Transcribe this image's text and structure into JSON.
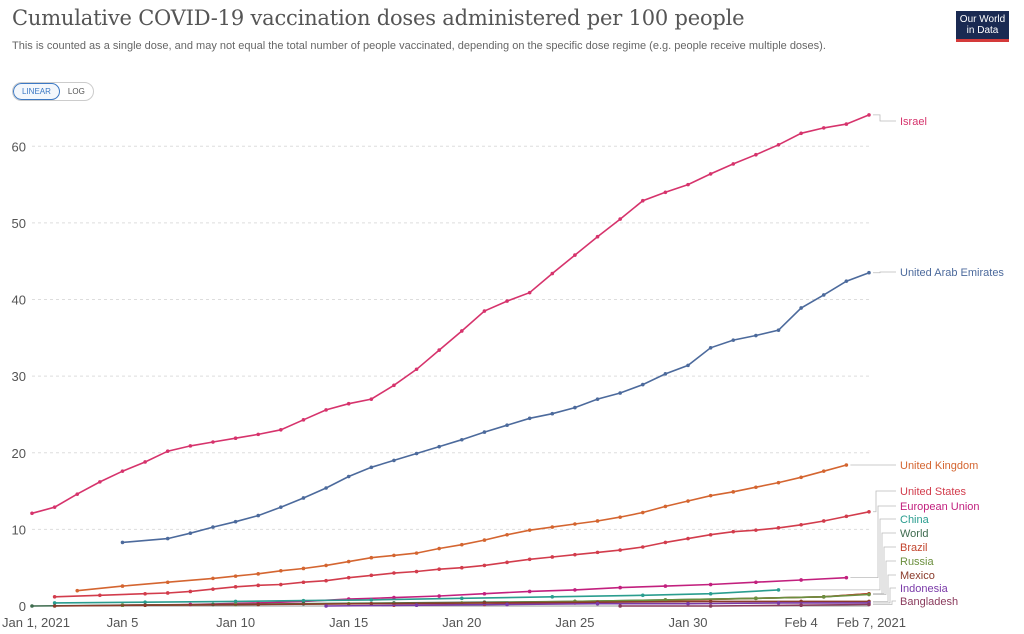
{
  "header": {
    "title": "Cumulative COVID-19 vaccination doses administered per 100 people",
    "subtitle": "This is counted as a single dose, and may not equal the total number of people vaccinated, depending on the specific dose regime (e.g. people receive multiple doses).",
    "logo_line1": "Our World",
    "logo_line2": "in Data",
    "logo_color": "#1a2a52",
    "logo_accent": "#d43a3a"
  },
  "controls": {
    "linear_label": "LINEAR",
    "log_label": "LOG",
    "active": "LINEAR"
  },
  "chart_data": {
    "type": "line",
    "title": "Cumulative COVID-19 vaccination doses administered per 100 people",
    "xlabel": "",
    "ylabel": "",
    "x_range": [
      0,
      37
    ],
    "xlim_dates": [
      "2021-01-01",
      "2021-02-07"
    ],
    "ylim": [
      0,
      65
    ],
    "yticks": [
      0,
      10,
      20,
      30,
      40,
      50,
      60
    ],
    "xticks": [
      {
        "day": 0,
        "label": "Jan 1, 2021"
      },
      {
        "day": 4,
        "label": "Jan 5"
      },
      {
        "day": 9,
        "label": "Jan 10"
      },
      {
        "day": 14,
        "label": "Jan 15"
      },
      {
        "day": 19,
        "label": "Jan 20"
      },
      {
        "day": 24,
        "label": "Jan 25"
      },
      {
        "day": 29,
        "label": "Jan 30"
      },
      {
        "day": 34,
        "label": "Feb 4"
      },
      {
        "day": 37,
        "label": "Feb 7, 2021"
      }
    ],
    "grid": "horizontal-dashed",
    "legend": "right (line-end labels)",
    "series": [
      {
        "name": "Israel",
        "color": "#d6336c",
        "points": [
          [
            0,
            12.1
          ],
          [
            1,
            12.9
          ],
          [
            2,
            14.6
          ],
          [
            3,
            16.2
          ],
          [
            4,
            17.6
          ],
          [
            5,
            18.8
          ],
          [
            6,
            20.2
          ],
          [
            7,
            20.9
          ],
          [
            8,
            21.4
          ],
          [
            9,
            21.9
          ],
          [
            10,
            22.4
          ],
          [
            11,
            23.0
          ],
          [
            12,
            24.3
          ],
          [
            13,
            25.6
          ],
          [
            14,
            26.4
          ],
          [
            15,
            27.0
          ],
          [
            16,
            28.8
          ],
          [
            17,
            30.9
          ],
          [
            18,
            33.4
          ],
          [
            19,
            35.9
          ],
          [
            20,
            38.5
          ],
          [
            21,
            39.8
          ],
          [
            22,
            40.9
          ],
          [
            23,
            43.4
          ],
          [
            24,
            45.8
          ],
          [
            25,
            48.2
          ],
          [
            26,
            50.5
          ],
          [
            27,
            52.9
          ],
          [
            28,
            54.0
          ],
          [
            29,
            55.0
          ],
          [
            30,
            56.4
          ],
          [
            31,
            57.7
          ],
          [
            32,
            58.9
          ],
          [
            33,
            60.2
          ],
          [
            34,
            61.7
          ],
          [
            35,
            62.4
          ],
          [
            36,
            62.9
          ],
          [
            37,
            64.1
          ]
        ]
      },
      {
        "name": "United Arab Emirates",
        "color": "#4c6a9c",
        "points": [
          [
            4,
            8.3
          ],
          [
            6,
            8.8
          ],
          [
            7,
            9.5
          ],
          [
            8,
            10.3
          ],
          [
            9,
            11.0
          ],
          [
            10,
            11.8
          ],
          [
            11,
            12.9
          ],
          [
            12,
            14.1
          ],
          [
            13,
            15.4
          ],
          [
            14,
            16.9
          ],
          [
            15,
            18.1
          ],
          [
            16,
            19.0
          ],
          [
            17,
            19.9
          ],
          [
            18,
            20.8
          ],
          [
            19,
            21.7
          ],
          [
            20,
            22.7
          ],
          [
            21,
            23.6
          ],
          [
            22,
            24.5
          ],
          [
            23,
            25.1
          ],
          [
            24,
            25.9
          ],
          [
            25,
            27.0
          ],
          [
            26,
            27.8
          ],
          [
            27,
            28.9
          ],
          [
            28,
            30.3
          ],
          [
            29,
            31.4
          ],
          [
            30,
            33.7
          ],
          [
            31,
            34.7
          ],
          [
            32,
            35.3
          ],
          [
            33,
            36.0
          ],
          [
            34,
            38.9
          ],
          [
            35,
            40.6
          ],
          [
            36,
            42.4
          ],
          [
            37,
            43.5
          ]
        ]
      },
      {
        "name": "United Kingdom",
        "color": "#d46530",
        "points": [
          [
            2,
            2.0
          ],
          [
            4,
            2.6
          ],
          [
            6,
            3.1
          ],
          [
            8,
            3.6
          ],
          [
            9,
            3.9
          ],
          [
            10,
            4.2
          ],
          [
            11,
            4.6
          ],
          [
            12,
            4.9
          ],
          [
            13,
            5.3
          ],
          [
            14,
            5.8
          ],
          [
            15,
            6.3
          ],
          [
            16,
            6.6
          ],
          [
            17,
            6.9
          ],
          [
            18,
            7.5
          ],
          [
            19,
            8.0
          ],
          [
            20,
            8.6
          ],
          [
            21,
            9.3
          ],
          [
            22,
            9.9
          ],
          [
            23,
            10.3
          ],
          [
            24,
            10.7
          ],
          [
            25,
            11.1
          ],
          [
            26,
            11.6
          ],
          [
            27,
            12.2
          ],
          [
            28,
            13.0
          ],
          [
            29,
            13.7
          ],
          [
            30,
            14.4
          ],
          [
            31,
            14.9
          ],
          [
            32,
            15.5
          ],
          [
            33,
            16.1
          ],
          [
            34,
            16.8
          ],
          [
            35,
            17.6
          ],
          [
            36,
            18.4
          ]
        ]
      },
      {
        "name": "United States",
        "color": "#d23c4c",
        "points": [
          [
            1,
            1.2
          ],
          [
            3,
            1.4
          ],
          [
            5,
            1.6
          ],
          [
            6,
            1.7
          ],
          [
            7,
            1.9
          ],
          [
            8,
            2.2
          ],
          [
            9,
            2.5
          ],
          [
            10,
            2.7
          ],
          [
            11,
            2.8
          ],
          [
            12,
            3.1
          ],
          [
            13,
            3.3
          ],
          [
            14,
            3.7
          ],
          [
            15,
            4.0
          ],
          [
            16,
            4.3
          ],
          [
            17,
            4.5
          ],
          [
            18,
            4.8
          ],
          [
            19,
            5.0
          ],
          [
            20,
            5.3
          ],
          [
            21,
            5.7
          ],
          [
            22,
            6.1
          ],
          [
            23,
            6.4
          ],
          [
            24,
            6.7
          ],
          [
            25,
            7.0
          ],
          [
            26,
            7.3
          ],
          [
            27,
            7.7
          ],
          [
            28,
            8.3
          ],
          [
            29,
            8.8
          ],
          [
            30,
            9.3
          ],
          [
            31,
            9.7
          ],
          [
            32,
            9.9
          ],
          [
            33,
            10.2
          ],
          [
            34,
            10.6
          ],
          [
            35,
            11.1
          ],
          [
            36,
            11.7
          ],
          [
            37,
            12.3
          ]
        ]
      },
      {
        "name": "European Union",
        "color": "#c2207e",
        "points": [
          [
            4,
            0.1
          ],
          [
            7,
            0.2
          ],
          [
            10,
            0.4
          ],
          [
            12,
            0.6
          ],
          [
            14,
            0.9
          ],
          [
            16,
            1.1
          ],
          [
            18,
            1.3
          ],
          [
            20,
            1.6
          ],
          [
            22,
            1.9
          ],
          [
            24,
            2.1
          ],
          [
            26,
            2.4
          ],
          [
            28,
            2.6
          ],
          [
            30,
            2.8
          ],
          [
            32,
            3.1
          ],
          [
            34,
            3.4
          ],
          [
            36,
            3.7
          ]
        ]
      },
      {
        "name": "China",
        "color": "#2a9d8f",
        "points": [
          [
            1,
            0.4
          ],
          [
            5,
            0.5
          ],
          [
            9,
            0.6
          ],
          [
            12,
            0.7
          ],
          [
            15,
            0.8
          ],
          [
            19,
            1.0
          ],
          [
            23,
            1.2
          ],
          [
            27,
            1.4
          ],
          [
            30,
            1.6
          ],
          [
            33,
            2.1
          ]
        ]
      },
      {
        "name": "World",
        "color": "#3e6b4e",
        "points": [
          [
            0,
            0.0
          ],
          [
            4,
            0.1
          ],
          [
            8,
            0.2
          ],
          [
            12,
            0.3
          ],
          [
            16,
            0.4
          ],
          [
            20,
            0.5
          ],
          [
            24,
            0.6
          ],
          [
            28,
            0.8
          ],
          [
            32,
            1.0
          ],
          [
            35,
            1.2
          ],
          [
            37,
            1.6
          ]
        ]
      },
      {
        "name": "Brazil",
        "color": "#c2452e",
        "points": [
          [
            16,
            0.1
          ],
          [
            20,
            0.2
          ],
          [
            24,
            0.4
          ],
          [
            28,
            0.7
          ],
          [
            32,
            1.0
          ],
          [
            35,
            1.2
          ],
          [
            37,
            1.6
          ]
        ]
      },
      {
        "name": "Russia",
        "color": "#6b8f3e",
        "points": [
          [
            4,
            0.1
          ],
          [
            9,
            0.2
          ],
          [
            14,
            0.3
          ],
          [
            19,
            0.4
          ],
          [
            24,
            0.6
          ],
          [
            28,
            0.8
          ],
          [
            32,
            1.0
          ],
          [
            35,
            1.2
          ],
          [
            37,
            1.5
          ]
        ]
      },
      {
        "name": "Mexico",
        "color": "#8a3a2a",
        "points": [
          [
            1,
            0.0
          ],
          [
            5,
            0.1
          ],
          [
            10,
            0.2
          ],
          [
            15,
            0.3
          ],
          [
            20,
            0.4
          ],
          [
            25,
            0.5
          ],
          [
            30,
            0.6
          ],
          [
            34,
            0.6
          ],
          [
            37,
            0.6
          ]
        ]
      },
      {
        "name": "Indonesia",
        "color": "#7a3aa8",
        "points": [
          [
            13,
            0.0
          ],
          [
            17,
            0.1
          ],
          [
            21,
            0.2
          ],
          [
            25,
            0.3
          ],
          [
            29,
            0.3
          ],
          [
            33,
            0.4
          ],
          [
            37,
            0.4
          ]
        ]
      },
      {
        "name": "Bangladesh",
        "color": "#8a3a5c",
        "points": [
          [
            26,
            0.0
          ],
          [
            30,
            0.0
          ],
          [
            34,
            0.1
          ],
          [
            37,
            0.2
          ]
        ]
      }
    ]
  }
}
